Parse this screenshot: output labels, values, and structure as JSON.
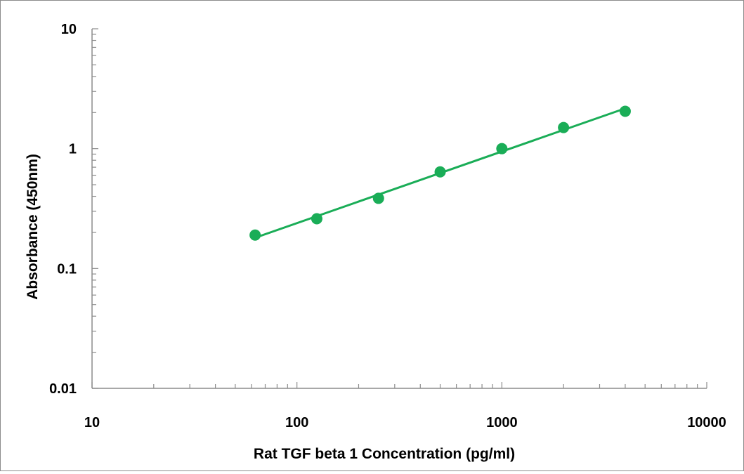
{
  "chart_data": {
    "type": "scatter",
    "title": "",
    "xlabel": "Rat TGF beta 1 Concentration (pg/ml)",
    "ylabel": "Absorbance (450nm)",
    "x_scale": "log",
    "y_scale": "log",
    "xlim": [
      10,
      10000
    ],
    "ylim": [
      0.01,
      10
    ],
    "x_ticks": [
      "10",
      "100",
      "1000",
      "10000"
    ],
    "y_ticks": [
      "0.01",
      "0.1",
      "1",
      "10"
    ],
    "grid": false,
    "legend": "none",
    "color": "#1aad57",
    "series": [
      {
        "x": [
          62.5,
          125,
          250,
          500,
          1000,
          2000,
          4000
        ],
        "y": [
          0.19,
          0.26,
          0.385,
          0.64,
          1.0,
          1.5,
          2.05
        ],
        "markers": true,
        "fit_line": true
      }
    ]
  }
}
